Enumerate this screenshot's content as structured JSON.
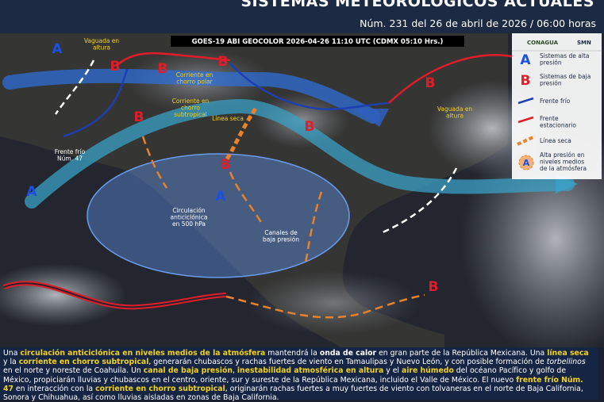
{
  "header": {
    "title": "SISTEMAS METEOROLÓGICOS ACTUALES",
    "subtitle": "Núm. 231 del 26 de abril de 2026 / 06:00 horas"
  },
  "image_caption": "GOES-19 ABI GEOCOLOR 2026-04-26 11:10 UTC (CDMX  05:10 Hrs.)",
  "map_labels": {
    "texts": [
      "Vaguada en altura",
      "Corriente en chorro polar",
      "Corriente en chorro subtropical",
      "Línea seca",
      "Frente frío Núm. 47",
      "Circulación anticiclónica en 500 hPa",
      "Canales de baja presión",
      "Vaguada en altura"
    ],
    "symbols": [
      "A",
      "B",
      "B",
      "B",
      "A",
      "B",
      "B",
      "A",
      "B",
      "B",
      "B"
    ]
  },
  "legend": {
    "logos": [
      "CONAGUA",
      "SMN"
    ],
    "items": [
      "Sistemas de alta presión",
      "Sistemas de baja presión",
      "Frente frío",
      "Frente estacionario",
      "Línea seca",
      "Alta presión en niveles medios de la atmósfera"
    ],
    "symbols": [
      "A",
      "B",
      "A"
    ]
  },
  "description": [
    {
      "text": "Una "
    },
    {
      "text": "circulación anticiclónica en niveles medios de la atmósfera",
      "highlight": true
    },
    {
      "text": " mantendrá la "
    },
    {
      "text": "onda de calor",
      "bold": true
    },
    {
      "text": " en gran parte de la República Mexicana. Una "
    },
    {
      "text": "línea seca",
      "highlight": true
    },
    {
      "text": " y la "
    },
    {
      "text": "corriente en chorro subtropical",
      "highlight": true
    },
    {
      "text": ", generarán chubascos y rachas fuertes de viento en Tamaulipas y Nuevo León, y con posible formación de "
    },
    {
      "text": "torbellinos",
      "italic": true
    },
    {
      "text": " en el norte y noreste de Coahuila. Un "
    },
    {
      "text": "canal de baja presión",
      "highlight": true
    },
    {
      "text": ", "
    },
    {
      "text": "inestabilidad atmosférica en altura",
      "highlight": true
    },
    {
      "text": " y el "
    },
    {
      "text": "aire húmedo",
      "highlight": true
    },
    {
      "text": " del océano Pacífico y golfo de México, propiciarán lluvias y chubascos en el centro, oriente, sur y sureste de la República Mexicana, incluido el Valle de México. El nuevo "
    },
    {
      "text": "frente frío Núm. 47",
      "highlight": true
    },
    {
      "text": " en interacción con la "
    },
    {
      "text": "corriente en chorro subtropical",
      "highlight": true
    },
    {
      "text": ", originarán rachas fuertes a muy fuertes de viento con tolvaneras en el norte de Baja California, Sonora y Chihuahua, así como lluvias aisladas en zonas de Baja California."
    }
  ]
}
